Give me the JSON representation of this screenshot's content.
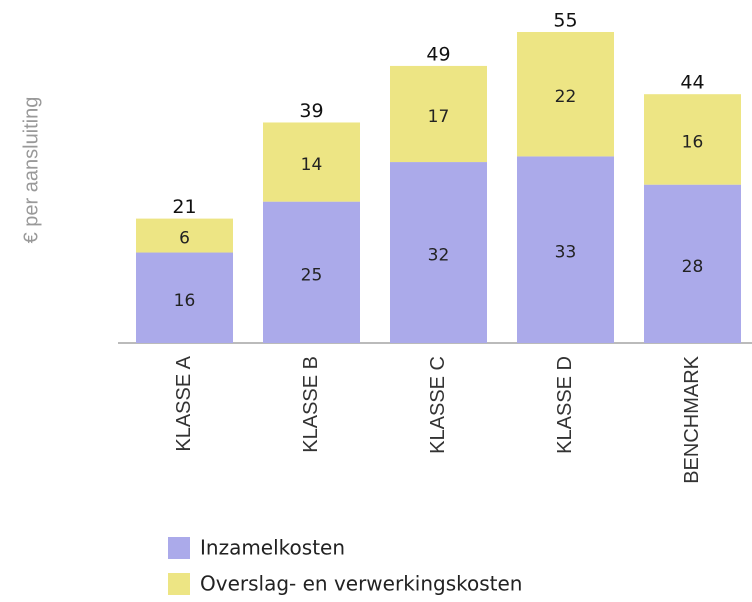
{
  "chart_data": {
    "type": "stacked_bar",
    "y_label": "€ per aansluiting",
    "categories": [
      "KLASSE A",
      "KLASSE B",
      "KLASSE C",
      "KLASSE D",
      "BENCHMARK"
    ],
    "series": [
      {
        "name": "Inzamelkosten",
        "color": "#abaaea",
        "values": [
          16,
          25,
          32,
          33,
          28
        ]
      },
      {
        "name": "Overslag- en verwerkingskosten",
        "color": "#ede584",
        "values": [
          6,
          14,
          17,
          22,
          16
        ]
      }
    ],
    "totals": [
      21,
      39,
      49,
      55,
      44
    ],
    "ylim": [
      0,
      55
    ]
  }
}
